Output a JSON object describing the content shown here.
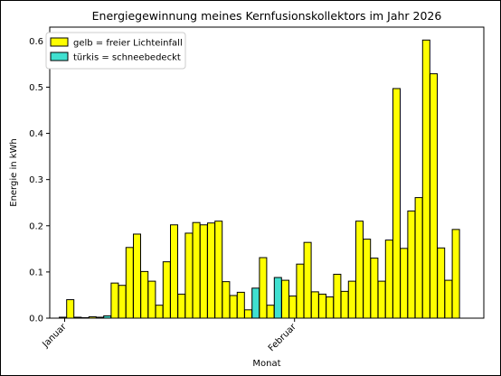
{
  "chart_data": {
    "type": "bar",
    "title": "Energiegewinnung meines Kernfusionskollektors im Jahr 2026",
    "xlabel": "Monat",
    "ylabel": "Energie in kWh",
    "ylim": [
      0,
      0.63
    ],
    "yticks": [
      0.0,
      0.1,
      0.2,
      0.3,
      0.4,
      0.5,
      0.6
    ],
    "xticks": [
      {
        "label": "Januar",
        "day_index": 0
      },
      {
        "label": "Februar",
        "day_index": 31
      }
    ],
    "legend": {
      "placement": "top-left",
      "entries": [
        {
          "label": "gelb = freier Lichteinfall",
          "color": "#ffff00"
        },
        {
          "label": "türkis = schneebedeckt",
          "color": "#40e0d0"
        }
      ]
    },
    "colors": {
      "sun": "#ffff00",
      "snow": "#40e0d0",
      "edge": "#000000"
    },
    "values": [
      0.002,
      0.04,
      0.002,
      0.001,
      0.003,
      0.002,
      0.005,
      0.076,
      0.071,
      0.153,
      0.182,
      0.101,
      0.08,
      0.028,
      0.122,
      0.202,
      0.052,
      0.184,
      0.207,
      0.202,
      0.206,
      0.21,
      0.079,
      0.049,
      0.056,
      0.018,
      0.065,
      0.131,
      0.028,
      0.088,
      0.082,
      0.048,
      0.117,
      0.164,
      0.057,
      0.052,
      0.046,
      0.095,
      0.058,
      0.08,
      0.21,
      0.171,
      0.13,
      0.08,
      0.169,
      0.497,
      0.151,
      0.232,
      0.261,
      0.602,
      0.529,
      0.152,
      0.082,
      0.192
    ],
    "snow_flags": [
      false,
      false,
      false,
      false,
      false,
      false,
      true,
      false,
      false,
      false,
      false,
      false,
      false,
      false,
      false,
      false,
      false,
      false,
      false,
      false,
      false,
      false,
      false,
      false,
      false,
      false,
      true,
      false,
      false,
      true,
      false,
      false,
      false,
      false,
      false,
      false,
      false,
      false,
      false,
      false,
      false,
      false,
      false,
      false,
      false,
      false,
      false,
      false,
      false,
      false,
      false,
      false,
      false,
      false
    ]
  }
}
